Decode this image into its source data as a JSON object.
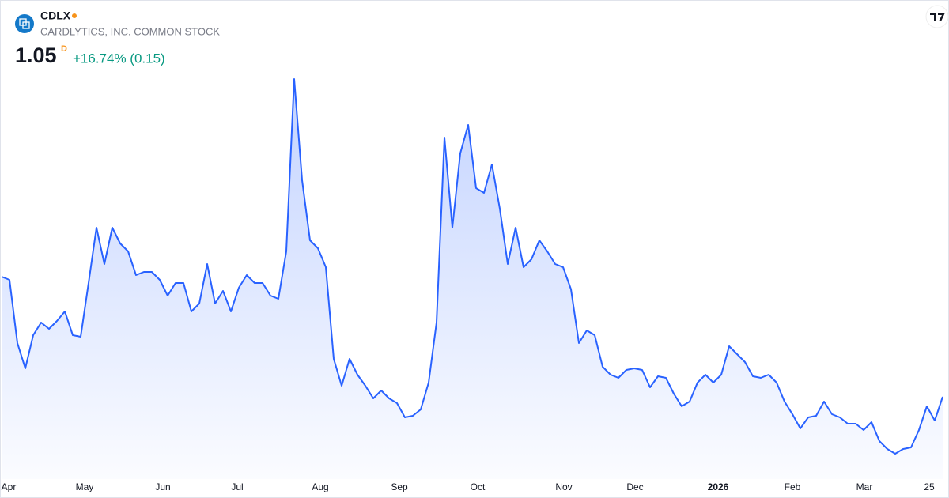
{
  "header": {
    "symbol": "CDLX",
    "name": "CARDLYTICS, INC. COMMON STOCK",
    "price": "1.05",
    "price_flag": "D",
    "change": "+16.74% (0.15)"
  },
  "chart_data": {
    "type": "area",
    "color": "#2962ff",
    "values": [
      1.81,
      1.79,
      1.39,
      1.23,
      1.44,
      1.52,
      1.48,
      1.53,
      1.59,
      1.44,
      1.43,
      1.77,
      2.12,
      1.89,
      2.12,
      2.02,
      1.97,
      1.82,
      1.84,
      1.84,
      1.79,
      1.69,
      1.77,
      1.77,
      1.59,
      1.64,
      1.89,
      1.64,
      1.72,
      1.59,
      1.74,
      1.82,
      1.77,
      1.77,
      1.69,
      1.67,
      1.97,
      3.06,
      2.42,
      2.04,
      1.99,
      1.87,
      1.29,
      1.12,
      1.29,
      1.19,
      1.12,
      1.04,
      1.09,
      1.04,
      1.01,
      0.92,
      0.93,
      0.97,
      1.14,
      1.52,
      2.69,
      2.12,
      2.59,
      2.77,
      2.37,
      2.34,
      2.52,
      2.24,
      1.89,
      2.12,
      1.87,
      1.92,
      2.04,
      1.97,
      1.89,
      1.87,
      1.73,
      1.39,
      1.47,
      1.44,
      1.24,
      1.19,
      1.17,
      1.22,
      1.23,
      1.22,
      1.11,
      1.18,
      1.17,
      1.07,
      0.99,
      1.02,
      1.14,
      1.19,
      1.14,
      1.19,
      1.37,
      1.32,
      1.27,
      1.18,
      1.17,
      1.19,
      1.14,
      1.02,
      0.94,
      0.85,
      0.92,
      0.93,
      1.02,
      0.94,
      0.92,
      0.88,
      0.88,
      0.84,
      0.89,
      0.77,
      0.72,
      0.69,
      0.72,
      0.73,
      0.84,
      0.99,
      0.9,
      1.05
    ],
    "ylim": [
      0.56,
      3.09
    ],
    "xticks": [
      {
        "value": 0.9,
        "label": "Apr"
      },
      {
        "value": 10.5,
        "label": "May"
      },
      {
        "value": 20.4,
        "label": "Jun"
      },
      {
        "value": 29.8,
        "label": "Jul"
      },
      {
        "value": 40.3,
        "label": "Aug"
      },
      {
        "value": 50.3,
        "label": "Sep"
      },
      {
        "value": 60.2,
        "label": "Oct"
      },
      {
        "value": 71.1,
        "label": "Nov"
      },
      {
        "value": 80.1,
        "label": "Dec"
      },
      {
        "value": 90.6,
        "label": "2026",
        "bold": true
      },
      {
        "value": 100,
        "label": "Feb"
      },
      {
        "value": 109.1,
        "label": "Mar"
      },
      {
        "value": 117.3,
        "label": "25"
      }
    ]
  }
}
